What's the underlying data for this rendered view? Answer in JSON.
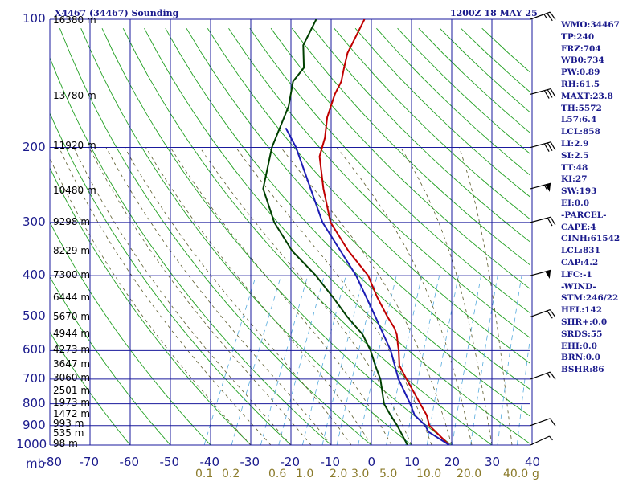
{
  "header": {
    "title": "X4467 (34467) Sounding",
    "datetime": "1200Z 18 MAY 25"
  },
  "stats": [
    "WMO:34467",
    "TP:240",
    "FRZ:704",
    "WB0:734",
    "PW:0.89",
    "RH:61.5",
    "MAXT:23.8",
    "TH:5572",
    "L57:6.4",
    "LCL:858",
    "LI:2.9",
    "SI:2.5",
    "TT:48",
    "KI:27",
    "SW:193",
    "EI:0.0",
    "-PARCEL-",
    "CAPE:4",
    "CINH:61542",
    "LCL:831",
    "CAP:4.2",
    "LFC:-1",
    "-WIND-",
    "STM:246/22",
    "HEL:142",
    "SHR+:0.0",
    "SRDS:55",
    "EHI:0.0",
    "BRN:0.0",
    "BSHR:86"
  ],
  "units_label": "mb",
  "mixing_ratio_unit": "g",
  "chart_data": {
    "type": "line",
    "chart": "skew-T log-P sounding",
    "pressure_levels": [
      1000,
      900,
      800,
      700,
      600,
      500,
      400,
      300,
      200,
      100
    ],
    "pressure_labels": [
      "1000",
      "900",
      "800",
      "700",
      "600",
      "500",
      "400",
      "300",
      "200",
      "100"
    ],
    "temperature_ticks": [
      -80,
      -70,
      -60,
      -50,
      -40,
      -30,
      -20,
      -10,
      0,
      10,
      20,
      30,
      40
    ],
    "temperature_labels": [
      "-80",
      "-70",
      "-60",
      "-50",
      "-40",
      "-30",
      "-20",
      "-10",
      "0",
      "10",
      "20",
      "30",
      "40"
    ],
    "mixing_ratio_labels": [
      "0.1",
      "0.2",
      "0.6",
      "1.0",
      "2.0",
      "3.0",
      "5.0",
      "10.0",
      "20.0",
      "40.0"
    ],
    "height_labels": [
      {
        "p": 996,
        "label": "98 m"
      },
      {
        "p": 940,
        "label": "535 m"
      },
      {
        "p": 895,
        "label": "993 m"
      },
      {
        "p": 849,
        "label": "1472 m"
      },
      {
        "p": 798,
        "label": "1973 m"
      },
      {
        "p": 747,
        "label": "2501 m"
      },
      {
        "p": 698,
        "label": "3060 m"
      },
      {
        "p": 648,
        "label": "3647 m"
      },
      {
        "p": 600,
        "label": "4273 m"
      },
      {
        "p": 550,
        "label": "4944 m"
      },
      {
        "p": 502,
        "label": "5670 m"
      },
      {
        "p": 452,
        "label": "6444 m"
      },
      {
        "p": 400,
        "label": "7300 m"
      },
      {
        "p": 351,
        "label": "8229 m"
      },
      {
        "p": 300,
        "label": "9298 m"
      },
      {
        "p": 253,
        "label": "10480 m"
      },
      {
        "p": 199,
        "label": "11920 m"
      },
      {
        "p": 152,
        "label": "13780 m"
      },
      {
        "p": 101,
        "label": "16380 m"
      }
    ],
    "series": [
      {
        "key": "temperature",
        "color": "#c00000",
        "points": [
          [
            1000,
            19.4
          ],
          [
            900,
            12
          ],
          [
            850,
            10
          ],
          [
            800,
            7
          ],
          [
            700,
            0.5
          ],
          [
            650,
            -3
          ],
          [
            600,
            -5
          ],
          [
            580,
            -6
          ],
          [
            550,
            -7.5
          ],
          [
            530,
            -9
          ],
          [
            500,
            -12
          ],
          [
            450,
            -17
          ],
          [
            400,
            -22
          ],
          [
            350,
            -30
          ],
          [
            300,
            -38
          ],
          [
            250,
            -44
          ],
          [
            210,
            -49
          ],
          [
            190,
            -50
          ],
          [
            170,
            -52
          ],
          [
            150,
            -53
          ],
          [
            140,
            -53
          ],
          [
            130,
            -54
          ],
          [
            120,
            -55
          ],
          [
            110,
            -55
          ],
          [
            100,
            -55
          ]
        ]
      },
      {
        "key": "dewpoint",
        "color": "#004000",
        "points": [
          [
            1000,
            9
          ],
          [
            900,
            4
          ],
          [
            850,
            1
          ],
          [
            800,
            -2
          ],
          [
            700,
            -6
          ],
          [
            650,
            -9
          ],
          [
            600,
            -12
          ],
          [
            550,
            -16
          ],
          [
            500,
            -22
          ],
          [
            450,
            -28
          ],
          [
            400,
            -35
          ],
          [
            350,
            -44
          ],
          [
            300,
            -52
          ],
          [
            250,
            -59
          ],
          [
            200,
            -62
          ],
          [
            160,
            -63
          ],
          [
            140,
            -65
          ],
          [
            130,
            -64
          ],
          [
            115,
            -67
          ],
          [
            100,
            -67
          ]
        ]
      },
      {
        "key": "parcel",
        "color": "#1c1cb4",
        "points": [
          [
            1000,
            19.4
          ],
          [
            970,
            16.5
          ],
          [
            940,
            13.5
          ],
          [
            930,
            12.5
          ],
          [
            900,
            11
          ],
          [
            850,
            7
          ],
          [
            800,
            4.5
          ],
          [
            700,
            -1.5
          ],
          [
            600,
            -7
          ],
          [
            500,
            -15
          ],
          [
            400,
            -25
          ],
          [
            300,
            -40
          ],
          [
            200,
            -56
          ],
          [
            180,
            -61
          ]
        ]
      }
    ],
    "wind_barbs": [
      {
        "p": 1000,
        "dir": 245,
        "kt": 5
      },
      {
        "p": 900,
        "dir": 250,
        "kt": 10
      },
      {
        "p": 700,
        "dir": 250,
        "kt": 15
      },
      {
        "p": 500,
        "dir": 250,
        "kt": 20
      },
      {
        "p": 400,
        "dir": 255,
        "kt": 50
      },
      {
        "p": 300,
        "dir": 255,
        "kt": 20
      },
      {
        "p": 250,
        "dir": 255,
        "kt": 55
      },
      {
        "p": 200,
        "dir": 255,
        "kt": 30
      },
      {
        "p": 150,
        "dir": 255,
        "kt": 30
      },
      {
        "p": 100,
        "dir": 250,
        "kt": 25
      }
    ],
    "grid": true,
    "ylim": [
      1000,
      100
    ],
    "xlim": [
      -80,
      40
    ]
  }
}
